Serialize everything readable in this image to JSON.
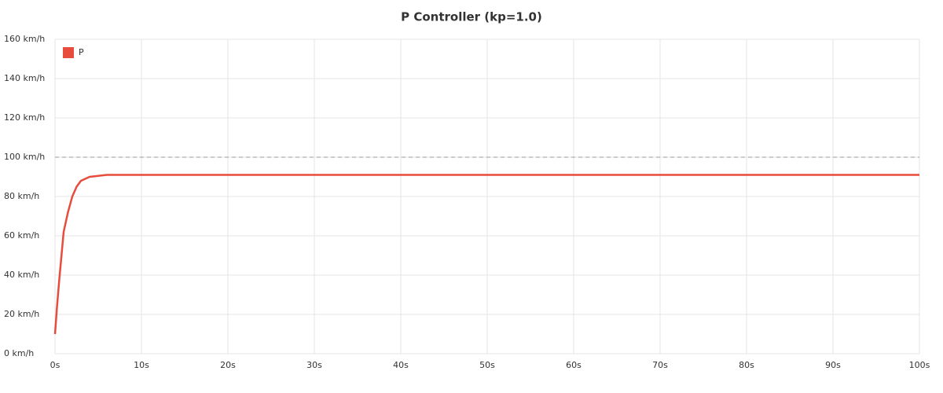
{
  "chart_data": {
    "type": "line",
    "title": "P Controller (kp=1.0)",
    "x": [
      0,
      0.25,
      0.5,
      0.75,
      1,
      1.5,
      2,
      2.5,
      3,
      3.5,
      4,
      5,
      6,
      10,
      20,
      30,
      40,
      50,
      60,
      70,
      80,
      90,
      100
    ],
    "series": [
      {
        "name": "P",
        "color": "#e74c3c",
        "values": [
          10,
          25,
          38,
          50,
          62,
          72,
          80,
          85,
          88,
          89,
          90,
          90.5,
          91,
          91,
          91,
          91,
          91,
          91,
          91,
          91,
          91,
          91,
          91
        ]
      }
    ],
    "xlim": [
      0,
      100
    ],
    "xticks": [
      {
        "value": 0,
        "label": "0s"
      },
      {
        "value": 10,
        "label": "10s"
      },
      {
        "value": 20,
        "label": "20s"
      },
      {
        "value": 30,
        "label": "30s"
      },
      {
        "value": 40,
        "label": "40s"
      },
      {
        "value": 50,
        "label": "50s"
      },
      {
        "value": 60,
        "label": "60s"
      },
      {
        "value": 70,
        "label": "70s"
      },
      {
        "value": 80,
        "label": "80s"
      },
      {
        "value": 90,
        "label": "90s"
      },
      {
        "value": 100,
        "label": "100s"
      }
    ],
    "ylim": [
      0,
      160
    ],
    "yticks": [
      {
        "value": 0,
        "label": "0 km/h"
      },
      {
        "value": 20,
        "label": "20 km/h"
      },
      {
        "value": 40,
        "label": "40 km/h"
      },
      {
        "value": 60,
        "label": "60 km/h"
      },
      {
        "value": 80,
        "label": "80 km/h"
      },
      {
        "value": 100,
        "label": "100 km/h"
      },
      {
        "value": 120,
        "label": "120 km/h"
      },
      {
        "value": 140,
        "label": "140 km/h"
      },
      {
        "value": 160,
        "label": "160 km/h"
      }
    ],
    "hlines": [
      100
    ],
    "grid": true,
    "legend": "top-left"
  }
}
